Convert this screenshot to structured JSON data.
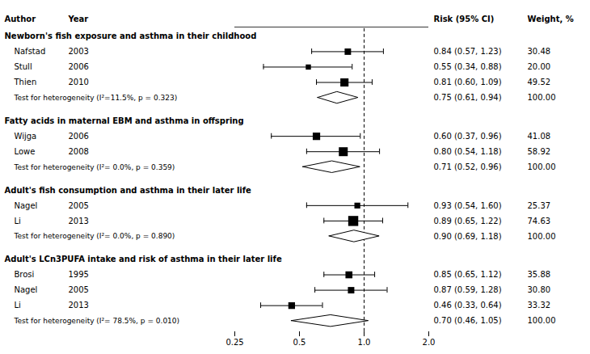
{
  "chart_data": {
    "type": "forest",
    "log": "x",
    "xlim": [
      0.25,
      2.0
    ],
    "xticks": [
      0.25,
      0.5,
      {
        "value": 1.0,
        "label": "1.0"
      },
      {
        "value": 2.0,
        "label": "2.0"
      }
    ],
    "xref": 1.0,
    "columns": [
      "Author",
      "Year",
      "Risk (95% CI)",
      "Weight, %"
    ],
    "sections": [
      {
        "title": "Newborn's fish exposure and asthma in their childhood",
        "studies": [
          {
            "author": "Nafstad",
            "year": "2003",
            "value": 0.84,
            "ci_low": 0.57,
            "ci_high": 1.23,
            "weight": 30.48,
            "label": "0.84 (0.57, 1.23)",
            "weight_label": "30.48"
          },
          {
            "author": "Stull",
            "year": "2006",
            "value": 0.55,
            "ci_low": 0.34,
            "ci_high": 0.88,
            "weight": 20.0,
            "label": "0.55 (0.34, 0.88)",
            "weight_label": "20.00"
          },
          {
            "author": "Thien",
            "year": "2010",
            "value": 0.81,
            "ci_low": 0.6,
            "ci_high": 1.09,
            "weight": 49.52,
            "label": "0.81 (0.60, 1.09)",
            "weight_label": "49.52"
          }
        ],
        "pooled": {
          "value": 0.75,
          "ci_low": 0.61,
          "ci_high": 0.94,
          "label": "0.75 (0.61, 0.94)",
          "weight_label": "100.00"
        },
        "heterogeneity": "Test for heterogeneity (I²=11.5%, p = 0.323)"
      },
      {
        "title": "Fatty acids in maternal EBM and asthma in offspring",
        "studies": [
          {
            "author": "Wijga",
            "year": "2006",
            "value": 0.6,
            "ci_low": 0.37,
            "ci_high": 0.96,
            "weight": 41.08,
            "label": "0.60 (0.37, 0.96)",
            "weight_label": "41.08"
          },
          {
            "author": "Lowe",
            "year": "2008",
            "value": 0.8,
            "ci_low": 0.54,
            "ci_high": 1.18,
            "weight": 58.92,
            "label": "0.80 (0.54, 1.18)",
            "weight_label": "58.92"
          }
        ],
        "pooled": {
          "value": 0.71,
          "ci_low": 0.52,
          "ci_high": 0.96,
          "label": "0.71 (0.52, 0.96)",
          "weight_label": "100.00"
        },
        "heterogeneity": "Test for heterogeneity (I²= 0.0%, p = 0.359)"
      },
      {
        "title": "Adult's fish consumption and asthma in their later life",
        "studies": [
          {
            "author": "Nagel",
            "year": "2005",
            "value": 0.93,
            "ci_low": 0.54,
            "ci_high": 1.6,
            "weight": 25.37,
            "label": "0.93 (0.54, 1.60)",
            "weight_label": "25.37"
          },
          {
            "author": "Li",
            "year": "2013",
            "value": 0.89,
            "ci_low": 0.65,
            "ci_high": 1.22,
            "weight": 74.63,
            "label": "0.89 (0.65, 1.22)",
            "weight_label": "74.63"
          }
        ],
        "pooled": {
          "value": 0.9,
          "ci_low": 0.69,
          "ci_high": 1.18,
          "label": "0.90 (0.69, 1.18)",
          "weight_label": "100.00"
        },
        "heterogeneity": "Test for heterogeneity (I²= 0.0%, p = 0.890)"
      },
      {
        "title": "Adult's LCn3PUFA intake and risk of asthma in their later life",
        "studies": [
          {
            "author": "Brosi",
            "year": "1995",
            "value": 0.85,
            "ci_low": 0.65,
            "ci_high": 1.12,
            "weight": 35.88,
            "label": "0.85 (0.65, 1.12)",
            "weight_label": "35.88"
          },
          {
            "author": "Nagel",
            "year": "2005",
            "value": 0.87,
            "ci_low": 0.59,
            "ci_high": 1.28,
            "weight": 30.8,
            "label": "0.87 (0.59, 1.28)",
            "weight_label": "30.80"
          },
          {
            "author": "Li",
            "year": "2013",
            "value": 0.46,
            "ci_low": 0.33,
            "ci_high": 0.64,
            "weight": 33.32,
            "label": "0.46 (0.33, 0.64)",
            "weight_label": "33.32"
          }
        ],
        "pooled": {
          "value": 0.7,
          "ci_low": 0.46,
          "ci_high": 1.05,
          "label": "0.70 (0.46, 1.05)",
          "weight_label": "100.00"
        },
        "heterogeneity": "Test for heterogeneity (I²= 78.5%, p = 0.010)"
      }
    ]
  }
}
